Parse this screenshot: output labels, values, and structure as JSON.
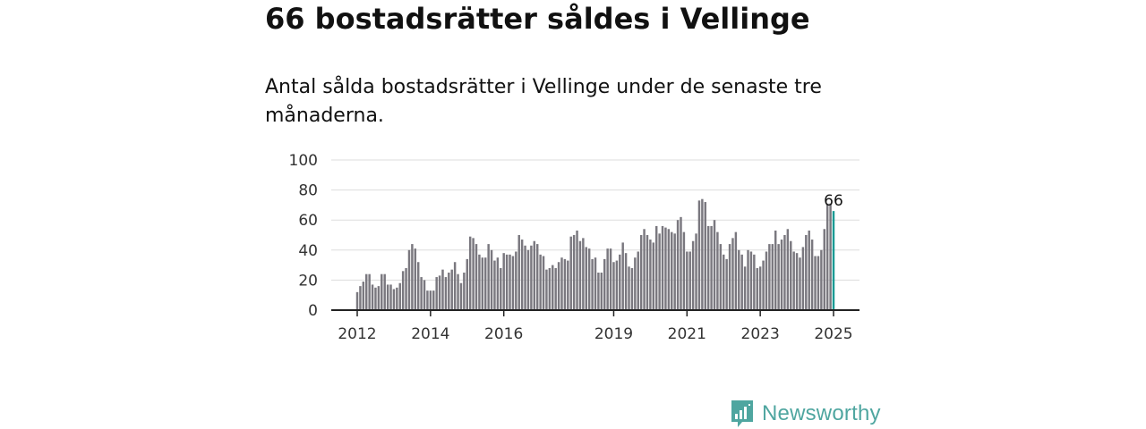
{
  "header": {
    "title": "66 bostadsrätter såldes i Vellinge",
    "subtitle": "Antal sålda bostadsrätter i Vellinge under de senaste tre månaderna."
  },
  "brand": {
    "name": "Newsworthy",
    "color": "#4fa6a0",
    "icon": "newsworthy-logo-icon"
  },
  "chart_data": {
    "type": "bar",
    "x_start": "2012-01",
    "xtick_labels": [
      "2012",
      "2014",
      "2016",
      "2019",
      "2021",
      "2023",
      "2025"
    ],
    "ytick_labels": [
      "0",
      "20",
      "40",
      "60",
      "80",
      "100"
    ],
    "ylim": [
      0,
      100
    ],
    "grid": true,
    "bar_color": "#7a787f",
    "highlight_color": "#1a9a94",
    "highlight_label": "66",
    "values": [
      12,
      16,
      19,
      24,
      24,
      17,
      15,
      16,
      24,
      24,
      17,
      17,
      14,
      15,
      18,
      26,
      28,
      40,
      44,
      41,
      32,
      22,
      20,
      13,
      13,
      13,
      22,
      23,
      27,
      22,
      25,
      27,
      32,
      24,
      18,
      25,
      34,
      49,
      48,
      44,
      37,
      35,
      35,
      44,
      40,
      33,
      35,
      28,
      38,
      37,
      37,
      36,
      39,
      50,
      47,
      43,
      40,
      43,
      46,
      44,
      37,
      36,
      27,
      28,
      30,
      28,
      32,
      35,
      34,
      33,
      49,
      50,
      53,
      46,
      48,
      42,
      41,
      34,
      35,
      25,
      25,
      34,
      41,
      41,
      32,
      33,
      37,
      45,
      38,
      29,
      28,
      35,
      39,
      50,
      54,
      50,
      47,
      45,
      56,
      51,
      56,
      55,
      54,
      52,
      51,
      60,
      62,
      52,
      39,
      39,
      46,
      51,
      73,
      74,
      72,
      56,
      56,
      60,
      52,
      44,
      37,
      34,
      44,
      48,
      52,
      40,
      37,
      29,
      40,
      39,
      37,
      28,
      29,
      33,
      39,
      44,
      44,
      53,
      44,
      47,
      50,
      54,
      46,
      39,
      38,
      35,
      42,
      50,
      53,
      47,
      36,
      36,
      40,
      54,
      71,
      71,
      66
    ]
  }
}
